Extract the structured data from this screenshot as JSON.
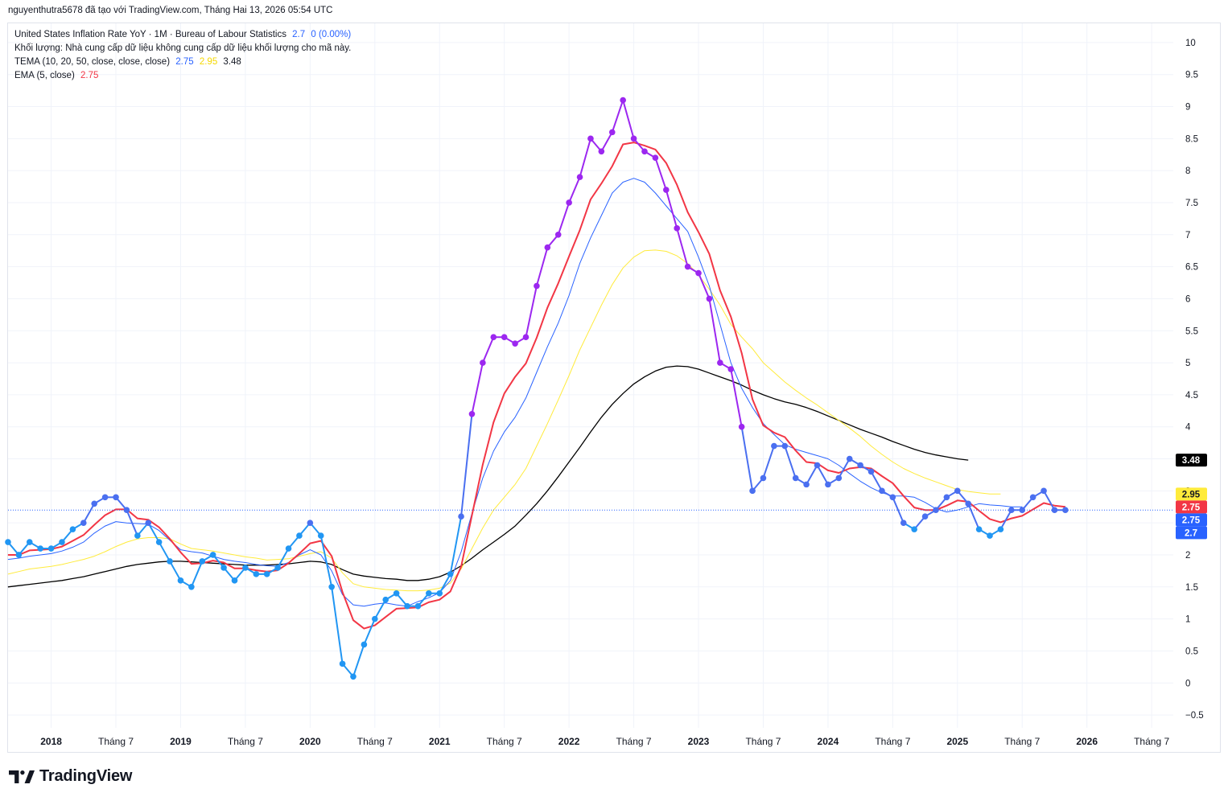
{
  "header": {
    "attribution": "nguyenthutra5678 đã tạo với TradingView.com, Tháng Hai 13, 2026 05:54 UTC"
  },
  "legend": {
    "main_label": "United States Inflation Rate YoY · 1M · Bureau of Labour Statistics",
    "main_value": "2.7",
    "main_change": "0 (0.00%)",
    "volume_note": "Khối lượng: Nhà cung cấp dữ liệu không cung cấp dữ liệu khối lượng cho mã này.",
    "tema_label": "TEMA (10, 20, 50, close, close, close)",
    "tema_v1": "2.75",
    "tema_v2": "2.95",
    "tema_v3": "3.48",
    "ema_label": "EMA (5, close)",
    "ema_value": "2.75"
  },
  "brand": {
    "name": "TradingView"
  },
  "colors": {
    "price_blue": "#2196f3",
    "price_purple": "#9c27f0",
    "price_mid": "#4a6ff0",
    "ema": "#f23645",
    "tema_fast": "#2962ff",
    "tema_mid": "#ffeb3b",
    "tema_slow": "#000000",
    "last_line": "#2962ff"
  },
  "chart_data": {
    "type": "line",
    "title": "United States Inflation Rate YoY",
    "ylim": [
      -0.7,
      10.3
    ],
    "y_ticks": [
      "−0.5",
      "0",
      "0.5",
      "1",
      "1.5",
      "2",
      "2.5",
      "3",
      "3.5",
      "4",
      "4.5",
      "5",
      "5.5",
      "6",
      "6.5",
      "7",
      "7.5",
      "8",
      "8.5",
      "9",
      "9.5",
      "10"
    ],
    "y_tick_values": [
      -0.5,
      0,
      0.5,
      1,
      1.5,
      2,
      2.5,
      3,
      3.5,
      4,
      4.5,
      5,
      5.5,
      6,
      6.5,
      7,
      7.5,
      8,
      8.5,
      9,
      9.5,
      10
    ],
    "x_labels": [
      {
        "label": "2018",
        "t": 2018.0,
        "bold": true
      },
      {
        "label": "Tháng 7",
        "t": 2018.5,
        "bold": false
      },
      {
        "label": "2019",
        "t": 2019.0,
        "bold": true
      },
      {
        "label": "Tháng 7",
        "t": 2019.5,
        "bold": false
      },
      {
        "label": "2020",
        "t": 2020.0,
        "bold": true
      },
      {
        "label": "Tháng 7",
        "t": 2020.5,
        "bold": false
      },
      {
        "label": "2021",
        "t": 2021.0,
        "bold": true
      },
      {
        "label": "Tháng 7",
        "t": 2021.5,
        "bold": false
      },
      {
        "label": "2022",
        "t": 2022.0,
        "bold": true
      },
      {
        "label": "Tháng 7",
        "t": 2022.5,
        "bold": false
      },
      {
        "label": "2023",
        "t": 2023.0,
        "bold": true
      },
      {
        "label": "Tháng 7",
        "t": 2023.5,
        "bold": false
      },
      {
        "label": "2024",
        "t": 2024.0,
        "bold": true
      },
      {
        "label": "Tháng 7",
        "t": 2024.5,
        "bold": false
      },
      {
        "label": "2025",
        "t": 2025.0,
        "bold": true
      },
      {
        "label": "Tháng 7",
        "t": 2025.5,
        "bold": false
      },
      {
        "label": "2026",
        "t": 2026.0,
        "bold": true
      },
      {
        "label": "Tháng 7",
        "t": 2026.5,
        "bold": false
      }
    ],
    "xlim": [
      2017.667,
      2026.667
    ],
    "series": [
      {
        "name": "United States Inflation Rate YoY",
        "start": "2017-09",
        "values": [
          2.2,
          2.0,
          2.2,
          2.1,
          2.1,
          2.2,
          2.4,
          2.5,
          2.8,
          2.9,
          2.9,
          2.7,
          2.3,
          2.5,
          2.2,
          1.9,
          1.6,
          1.5,
          1.9,
          2.0,
          1.8,
          1.6,
          1.8,
          1.7,
          1.7,
          1.8,
          2.1,
          2.3,
          2.5,
          2.3,
          1.5,
          0.3,
          0.1,
          0.6,
          1.0,
          1.3,
          1.4,
          1.2,
          1.2,
          1.4,
          1.4,
          1.7,
          2.6,
          4.2,
          5.0,
          5.4,
          5.4,
          5.3,
          5.4,
          6.2,
          6.8,
          7.0,
          7.5,
          7.9,
          8.5,
          8.3,
          8.6,
          9.1,
          8.5,
          8.3,
          8.2,
          7.7,
          7.1,
          6.5,
          6.4,
          6.0,
          5.0,
          4.9,
          4.0,
          3.0,
          3.2,
          3.7,
          3.7,
          3.2,
          3.1,
          3.4,
          3.1,
          3.2,
          3.5,
          3.4,
          3.3,
          3.0,
          2.9,
          2.5,
          2.4,
          2.6,
          2.7,
          2.9,
          3.0,
          2.8,
          2.4,
          2.3,
          2.4,
          2.7,
          2.7,
          2.9,
          3.0,
          2.7,
          2.7
        ]
      },
      {
        "name": "EMA (5, close)",
        "start": "2017-09",
        "values": [
          2.0,
          2.0,
          2.07,
          2.08,
          2.09,
          2.13,
          2.22,
          2.31,
          2.47,
          2.62,
          2.71,
          2.71,
          2.57,
          2.55,
          2.43,
          2.25,
          2.04,
          1.86,
          1.87,
          1.91,
          1.88,
          1.79,
          1.79,
          1.76,
          1.74,
          1.76,
          1.87,
          2.02,
          2.18,
          2.22,
          1.98,
          1.42,
          0.98,
          0.85,
          0.9,
          1.03,
          1.16,
          1.17,
          1.18,
          1.26,
          1.3,
          1.43,
          1.82,
          2.62,
          3.41,
          4.07,
          4.52,
          4.78,
          4.99,
          5.39,
          5.86,
          6.24,
          6.66,
          7.07,
          7.55,
          7.8,
          8.07,
          8.41,
          8.44,
          8.39,
          8.33,
          8.12,
          7.78,
          7.35,
          7.04,
          6.7,
          6.13,
          5.72,
          5.15,
          4.43,
          4.02,
          3.91,
          3.84,
          3.63,
          3.45,
          3.43,
          3.32,
          3.28,
          3.35,
          3.37,
          3.35,
          3.23,
          3.12,
          2.92,
          2.74,
          2.7,
          2.7,
          2.77,
          2.85,
          2.83,
          2.69,
          2.56,
          2.51,
          2.57,
          2.61,
          2.71,
          2.81,
          2.77,
          2.75
        ]
      },
      {
        "name": "TEMA (10)",
        "start": "2017-09",
        "values": [
          1.93,
          1.95,
          1.98,
          2.0,
          2.02,
          2.06,
          2.12,
          2.2,
          2.34,
          2.45,
          2.52,
          2.5,
          2.49,
          2.48,
          2.38,
          2.23,
          2.08,
          2.05,
          2.03,
          1.98,
          1.93,
          1.9,
          1.88,
          1.85,
          1.83,
          1.82,
          1.88,
          2.0,
          2.08,
          2.0,
          1.75,
          1.38,
          1.22,
          1.2,
          1.23,
          1.25,
          1.22,
          1.2,
          1.27,
          1.33,
          1.41,
          1.6,
          2.05,
          2.65,
          3.2,
          3.62,
          3.92,
          4.15,
          4.45,
          4.85,
          5.25,
          5.62,
          6.05,
          6.55,
          6.95,
          7.3,
          7.65,
          7.82,
          7.88,
          7.82,
          7.65,
          7.45,
          7.25,
          7.05,
          6.65,
          6.2,
          5.6,
          5.0,
          4.6,
          4.3,
          4.05,
          3.88,
          3.72,
          3.65,
          3.6,
          3.55,
          3.5,
          3.4,
          3.27,
          3.15,
          3.05,
          2.97,
          2.92,
          2.92,
          2.9,
          2.82,
          2.72,
          2.67,
          2.7,
          2.75,
          2.8,
          2.78,
          2.77,
          2.75,
          2.75
        ]
      },
      {
        "name": "TEMA (20)",
        "start": "2017-09",
        "values": [
          1.7,
          1.74,
          1.78,
          1.8,
          1.82,
          1.85,
          1.89,
          1.93,
          1.98,
          2.05,
          2.13,
          2.2,
          2.25,
          2.27,
          2.27,
          2.25,
          2.17,
          2.1,
          2.08,
          2.06,
          2.03,
          2.0,
          1.97,
          1.95,
          1.92,
          1.93,
          1.94,
          1.98,
          2.02,
          2.05,
          1.95,
          1.72,
          1.55,
          1.5,
          1.48,
          1.46,
          1.45,
          1.44,
          1.44,
          1.45,
          1.48,
          1.56,
          1.78,
          2.1,
          2.42,
          2.7,
          2.9,
          3.1,
          3.35,
          3.7,
          4.05,
          4.42,
          4.8,
          5.2,
          5.55,
          5.9,
          6.22,
          6.48,
          6.65,
          6.75,
          6.76,
          6.74,
          6.67,
          6.55,
          6.37,
          6.15,
          5.9,
          5.6,
          5.4,
          5.22,
          5.0,
          4.85,
          4.7,
          4.57,
          4.45,
          4.34,
          4.22,
          4.1,
          3.98,
          3.85,
          3.7,
          3.57,
          3.45,
          3.35,
          3.27,
          3.2,
          3.14,
          3.08,
          3.02,
          2.99,
          2.97,
          2.95,
          2.95
        ]
      },
      {
        "name": "TEMA (50)",
        "start": "2017-09",
        "values": [
          1.5,
          1.52,
          1.54,
          1.56,
          1.58,
          1.6,
          1.63,
          1.66,
          1.7,
          1.74,
          1.78,
          1.82,
          1.85,
          1.87,
          1.89,
          1.9,
          1.9,
          1.89,
          1.88,
          1.87,
          1.86,
          1.85,
          1.84,
          1.84,
          1.84,
          1.85,
          1.86,
          1.88,
          1.9,
          1.89,
          1.85,
          1.77,
          1.7,
          1.67,
          1.65,
          1.63,
          1.62,
          1.6,
          1.6,
          1.62,
          1.66,
          1.73,
          1.83,
          1.95,
          2.08,
          2.2,
          2.32,
          2.45,
          2.62,
          2.8,
          3.0,
          3.22,
          3.45,
          3.68,
          3.92,
          4.15,
          4.35,
          4.52,
          4.67,
          4.78,
          4.87,
          4.93,
          4.95,
          4.94,
          4.9,
          4.84,
          4.78,
          4.72,
          4.65,
          4.57,
          4.5,
          4.44,
          4.39,
          4.35,
          4.3,
          4.24,
          4.17,
          4.1,
          4.03,
          3.96,
          3.9,
          3.84,
          3.77,
          3.71,
          3.65,
          3.6,
          3.56,
          3.53,
          3.5,
          3.48
        ]
      }
    ],
    "last_value_labels": [
      "3.48",
      "2.95",
      "2.75",
      "2.75",
      "2.7"
    ],
    "last_value_targets": [
      3.48,
      2.95,
      2.75,
      2.75,
      2.7
    ],
    "last_price": 2.7
  }
}
